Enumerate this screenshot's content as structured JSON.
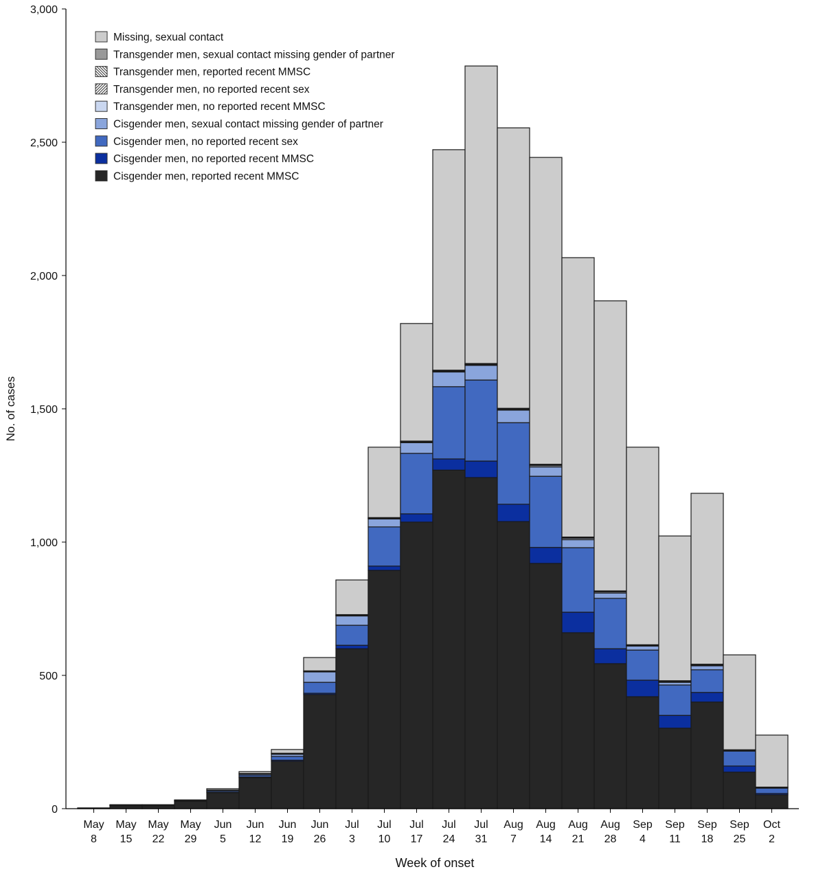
{
  "chart_data": {
    "type": "bar",
    "stacked": true,
    "title": "",
    "xlabel": "Week of onset",
    "ylabel": "No. of cases",
    "ylim": [
      0,
      3000
    ],
    "yticks": [
      0,
      500,
      1000,
      1500,
      2000,
      2500,
      3000
    ],
    "ytick_labels": [
      "0",
      "500",
      "1,000",
      "1,500",
      "2,000",
      "2,500",
      "3,000"
    ],
    "grid": false,
    "legend_position": "top-left",
    "categories": [
      "May 8",
      "May 15",
      "May 22",
      "May 29",
      "Jun 5",
      "Jun 12",
      "Jun 19",
      "Jun 26",
      "Jul 3",
      "Jul 10",
      "Jul 17",
      "Jul 24",
      "Jul 31",
      "Aug 7",
      "Aug 14",
      "Aug 21",
      "Aug 28",
      "Sep 4",
      "Sep 11",
      "Sep 18",
      "Sep 25",
      "Oct 2"
    ],
    "series": [
      {
        "name": "Cisgender men, reported recent MMSC",
        "color": "#262626",
        "pattern": "solid",
        "values": [
          2,
          12,
          12,
          28,
          60,
          116,
          178,
          428,
          600,
          894,
          1075,
          1270,
          1242,
          1077,
          920,
          660,
          544,
          420,
          302,
          400,
          137,
          52
        ]
      },
      {
        "name": "Cisgender men, no reported recent MMSC",
        "color": "#0b2f9f",
        "pattern": "solid",
        "values": [
          0,
          1,
          1,
          2,
          2,
          3,
          4,
          5,
          13,
          16,
          31,
          42,
          62,
          65,
          60,
          77,
          56,
          62,
          48,
          36,
          23,
          5
        ]
      },
      {
        "name": "Cisgender men, no reported recent sex",
        "color": "#4169c0",
        "pattern": "solid",
        "values": [
          0,
          1,
          1,
          1,
          5,
          7,
          14,
          41,
          75,
          147,
          227,
          271,
          304,
          306,
          267,
          242,
          189,
          113,
          114,
          85,
          56,
          20
        ]
      },
      {
        "name": "Cisgender men, sexual contact missing gender of partner",
        "color": "#8aa5dc",
        "pattern": "solid",
        "values": [
          0,
          0,
          0,
          0,
          3,
          5,
          8,
          39,
          35,
          30,
          40,
          55,
          55,
          47,
          35,
          30,
          20,
          15,
          10,
          15,
          3,
          3
        ]
      },
      {
        "name": "Transgender men, no reported recent MMSC",
        "color": "#cad7f0",
        "pattern": "solid",
        "values": [
          0,
          0,
          0,
          0,
          0,
          1,
          3,
          2,
          2,
          2,
          3,
          3,
          3,
          3,
          5,
          5,
          5,
          2,
          3,
          3,
          1,
          0
        ]
      },
      {
        "name": "Transgender men, no reported recent sex",
        "color": "#ffffff",
        "pattern": "hatch-forward",
        "values": [
          0,
          0,
          0,
          0,
          0,
          0,
          1,
          1,
          1,
          1,
          1,
          1,
          1,
          1,
          2,
          2,
          1,
          1,
          1,
          1,
          0,
          0
        ]
      },
      {
        "name": "Transgender men, reported recent MMSC",
        "color": "#ffffff",
        "pattern": "hatch-back",
        "values": [
          0,
          0,
          0,
          0,
          0,
          0,
          0,
          1,
          1,
          1,
          1,
          1,
          1,
          1,
          1,
          1,
          1,
          1,
          1,
          1,
          0,
          0
        ]
      },
      {
        "name": "Transgender men, sexual contact missing gender of partner",
        "color": "#999999",
        "pattern": "solid",
        "values": [
          0,
          0,
          0,
          0,
          0,
          0,
          0,
          0,
          1,
          1,
          1,
          2,
          2,
          2,
          2,
          2,
          1,
          1,
          1,
          1,
          1,
          1
        ]
      },
      {
        "name": "Missing, sexual contact",
        "color": "#cccccc",
        "pattern": "solid",
        "values": [
          1,
          1,
          1,
          2,
          5,
          7,
          14,
          50,
          130,
          264,
          441,
          827,
          1116,
          1052,
          1151,
          1048,
          1088,
          741,
          543,
          641,
          356,
          195
        ]
      }
    ],
    "legend_order": [
      8,
      7,
      6,
      5,
      4,
      3,
      2,
      1,
      0
    ]
  }
}
